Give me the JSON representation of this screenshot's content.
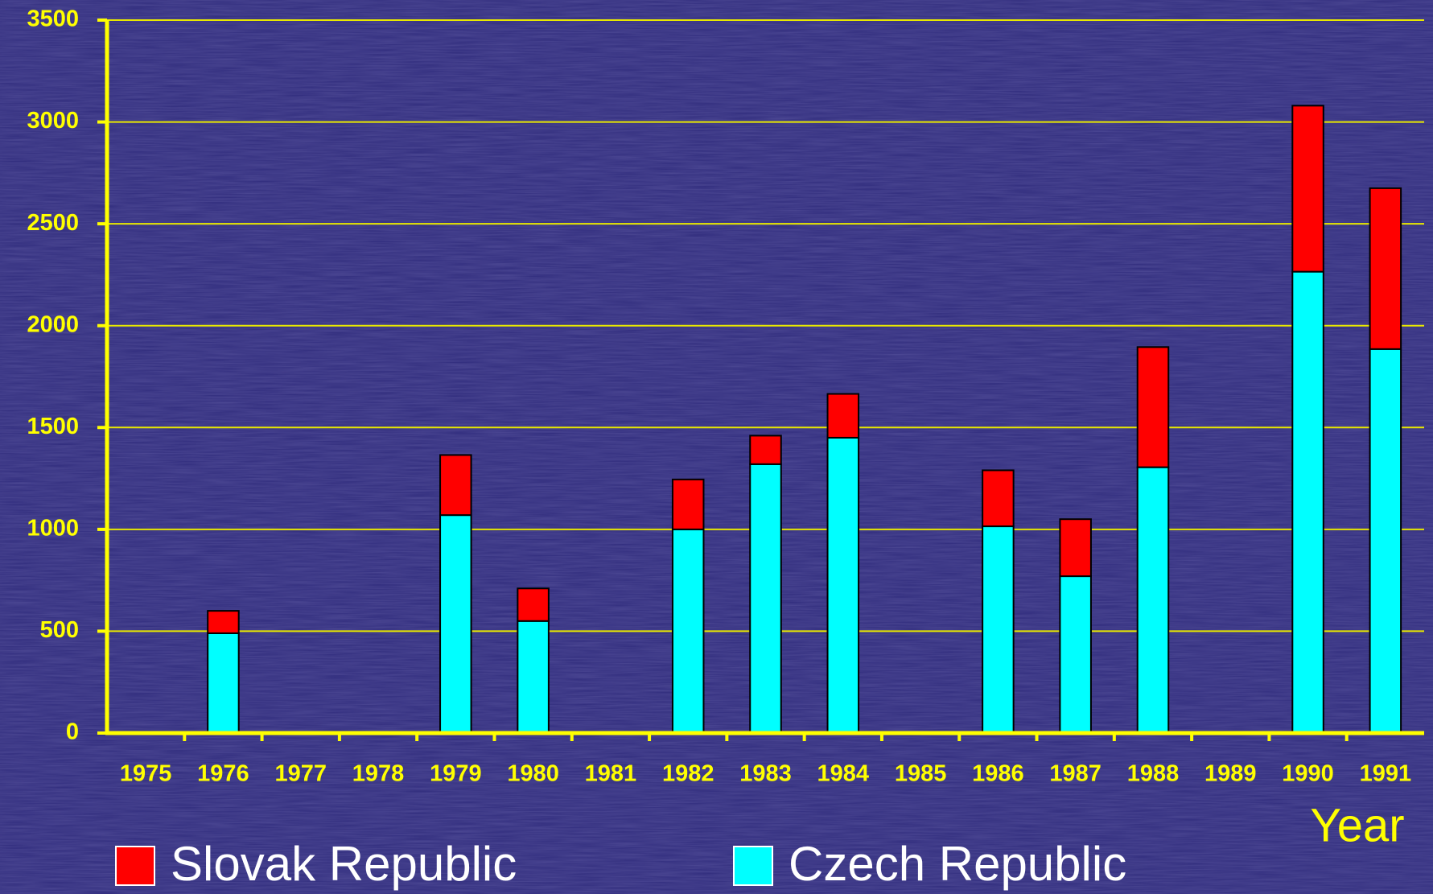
{
  "chart_data": {
    "type": "stacked_bar",
    "x_axis_label": "Year",
    "categories": [
      "1975",
      "1976",
      "1977",
      "1978",
      "1979",
      "1980",
      "1981",
      "1982",
      "1983",
      "1984",
      "1985",
      "1986",
      "1987",
      "1988",
      "1989",
      "1990",
      "1991"
    ],
    "series": [
      {
        "name": "Slovak Republic",
        "color": "#ff0000",
        "values": [
          null,
          110,
          null,
          null,
          295,
          160,
          null,
          245,
          140,
          215,
          null,
          275,
          280,
          590,
          null,
          815,
          790
        ]
      },
      {
        "name": "Czech Republic",
        "color": "#00ffff",
        "values": [
          null,
          490,
          null,
          null,
          1070,
          550,
          null,
          1000,
          1320,
          1450,
          null,
          1015,
          770,
          1305,
          null,
          2265,
          1885
        ]
      }
    ],
    "ylim": [
      0,
      3500
    ],
    "yticks": [
      0,
      500,
      1000,
      1500,
      2000,
      2500,
      3000,
      3500
    ],
    "grid": true,
    "legend": "bottom"
  }
}
